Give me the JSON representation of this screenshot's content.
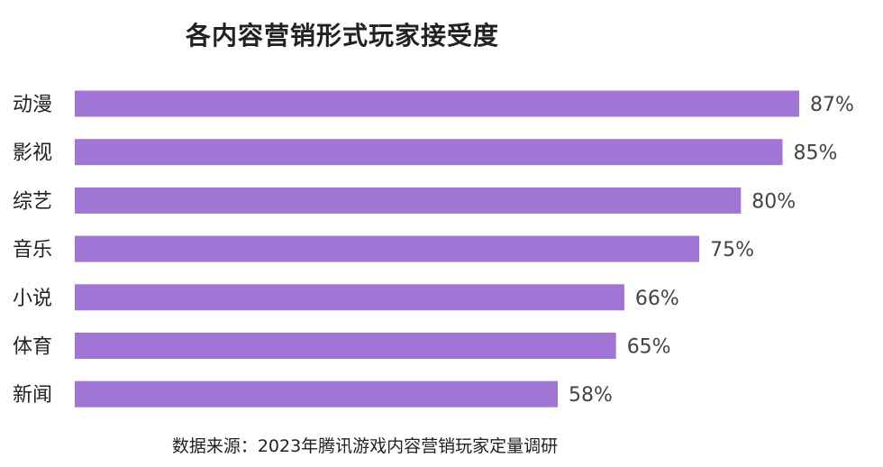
{
  "chart_data": {
    "type": "bar",
    "orientation": "horizontal",
    "title": "各内容营销形式玩家接受度",
    "source": "数据来源：2023年腾讯游戏内容营销玩家定量调研",
    "categories": [
      "动漫",
      "影视",
      "综艺",
      "音乐",
      "小说",
      "体育",
      "新闻"
    ],
    "values": [
      87,
      85,
      80,
      75,
      66,
      65,
      58
    ],
    "value_labels": [
      "87%",
      "85%",
      "80%",
      "75%",
      "66%",
      "65%",
      "58%"
    ],
    "unit": "%",
    "xlim": [
      0,
      87
    ],
    "grid": false,
    "legend": "none",
    "colors": {
      "bar": "#A175D6",
      "text": "#222222",
      "label": "#444444"
    }
  }
}
